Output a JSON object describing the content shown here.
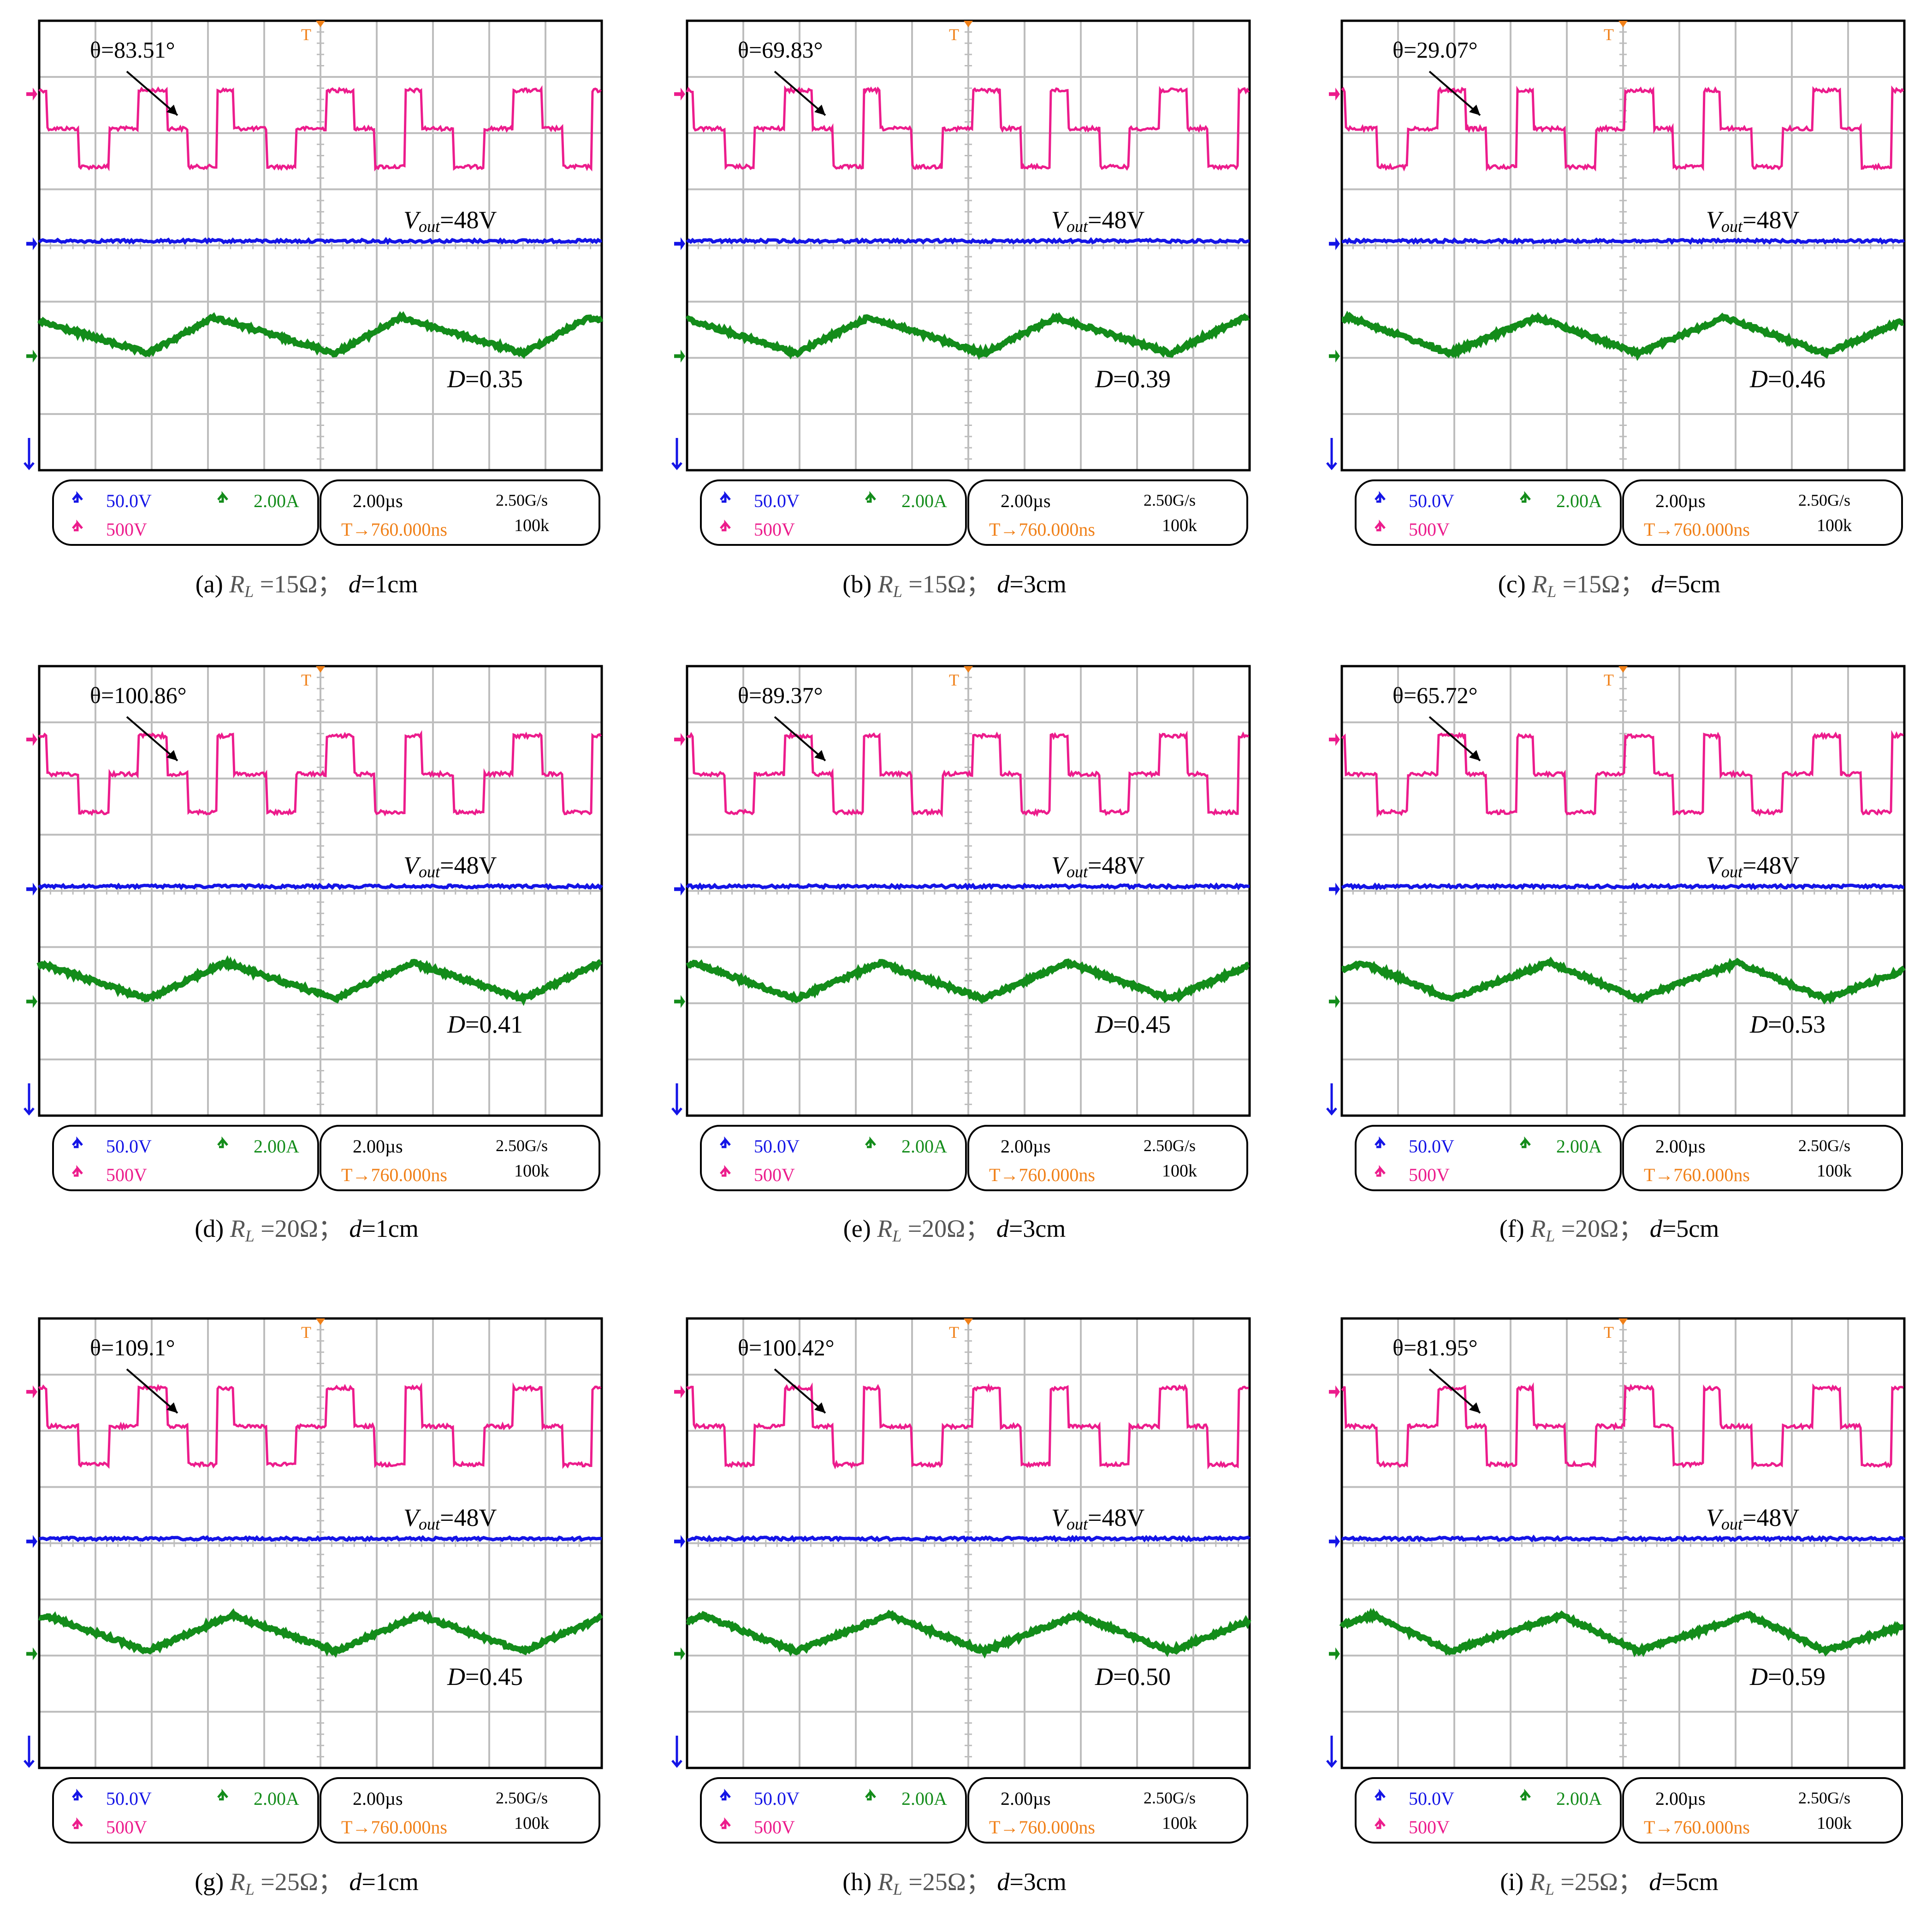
{
  "colors": {
    "switch_voltage": "#ec1c8c",
    "output_voltage": "#1414e6",
    "inductor_current": "#138c1a",
    "trigger": "#f08018",
    "grid": "#bdbdbd",
    "frame": "#000000",
    "annotation": "#000000"
  },
  "scope_labels": {
    "ch_blue_scale": "50.0V",
    "ch_pink_scale": "500V",
    "ch_green_scale": "2.00A",
    "timebase": "2.00µs",
    "trigger_offset": "T→760.000ns",
    "sample_rate": "2.50G/s",
    "record_length": "100k",
    "trigger_marker": "T"
  },
  "chart_data": [
    {
      "type": "line",
      "id": "a",
      "caption_prefix": "(a)",
      "caption_rest": "=15Ω；",
      "caption_d": "=1cm",
      "theta_label": "θ=83.51°",
      "vout_label": "=48V",
      "d_label": "=0.35",
      "theta_deg": 83.51,
      "duty": 0.35,
      "load_ohm": 15,
      "distance_cm": 1,
      "vout_v": 48
    },
    {
      "type": "line",
      "id": "b",
      "caption_prefix": "(b)",
      "caption_rest": "=15Ω；",
      "caption_d": "=3cm",
      "theta_label": "θ=69.83°",
      "vout_label": "=48V",
      "d_label": "=0.39",
      "theta_deg": 69.83,
      "duty": 0.39,
      "load_ohm": 15,
      "distance_cm": 3,
      "vout_v": 48
    },
    {
      "type": "line",
      "id": "c",
      "caption_prefix": "(c)",
      "caption_rest": "=15Ω；",
      "caption_d": "=5cm",
      "theta_label": "θ=29.07°",
      "vout_label": "=48V",
      "d_label": "=0.46",
      "theta_deg": 29.07,
      "duty": 0.46,
      "load_ohm": 15,
      "distance_cm": 5,
      "vout_v": 48
    },
    {
      "type": "line",
      "id": "d",
      "caption_prefix": "(d)",
      "caption_rest": "=20Ω；",
      "caption_d": "=1cm",
      "theta_label": "θ=100.86°",
      "vout_label": "=48V",
      "d_label": "=0.41",
      "theta_deg": 100.86,
      "duty": 0.41,
      "load_ohm": 20,
      "distance_cm": 1,
      "vout_v": 48
    },
    {
      "type": "line",
      "id": "e",
      "caption_prefix": "(e)",
      "caption_rest": "=20Ω；",
      "caption_d": "=3cm",
      "theta_label": "θ=89.37°",
      "vout_label": "=48V",
      "d_label": "=0.45",
      "theta_deg": 89.37,
      "duty": 0.45,
      "load_ohm": 20,
      "distance_cm": 3,
      "vout_v": 48
    },
    {
      "type": "line",
      "id": "f",
      "caption_prefix": "(f)",
      "caption_rest": "=20Ω；",
      "caption_d": "=5cm",
      "theta_label": "θ=65.72°",
      "vout_label": "=48V",
      "d_label": "=0.53",
      "theta_deg": 65.72,
      "duty": 0.53,
      "load_ohm": 20,
      "distance_cm": 5,
      "vout_v": 48
    },
    {
      "type": "line",
      "id": "g",
      "caption_prefix": "(g)",
      "caption_rest": "=25Ω；",
      "caption_d": "=1cm",
      "theta_label": "θ=109.1°",
      "vout_label": "=48V",
      "d_label": "=0.45",
      "theta_deg": 109.1,
      "duty": 0.45,
      "load_ohm": 25,
      "distance_cm": 1,
      "vout_v": 48
    },
    {
      "type": "line",
      "id": "h",
      "caption_prefix": "(h)",
      "caption_rest": "=25Ω；",
      "caption_d": "=3cm",
      "theta_label": "θ=100.42°",
      "vout_label": "=48V",
      "d_label": "=0.50",
      "theta_deg": 100.42,
      "duty": 0.5,
      "load_ohm": 25,
      "distance_cm": 3,
      "vout_v": 48
    },
    {
      "type": "line",
      "id": "i",
      "caption_prefix": "(i)",
      "caption_rest": "=25Ω；",
      "caption_d": "=5cm",
      "theta_label": "θ=81.95°",
      "vout_label": "=48V",
      "d_label": "=0.59",
      "theta_deg": 81.95,
      "duty": 0.59,
      "load_ohm": 25,
      "distance_cm": 5,
      "vout_v": 48
    }
  ]
}
